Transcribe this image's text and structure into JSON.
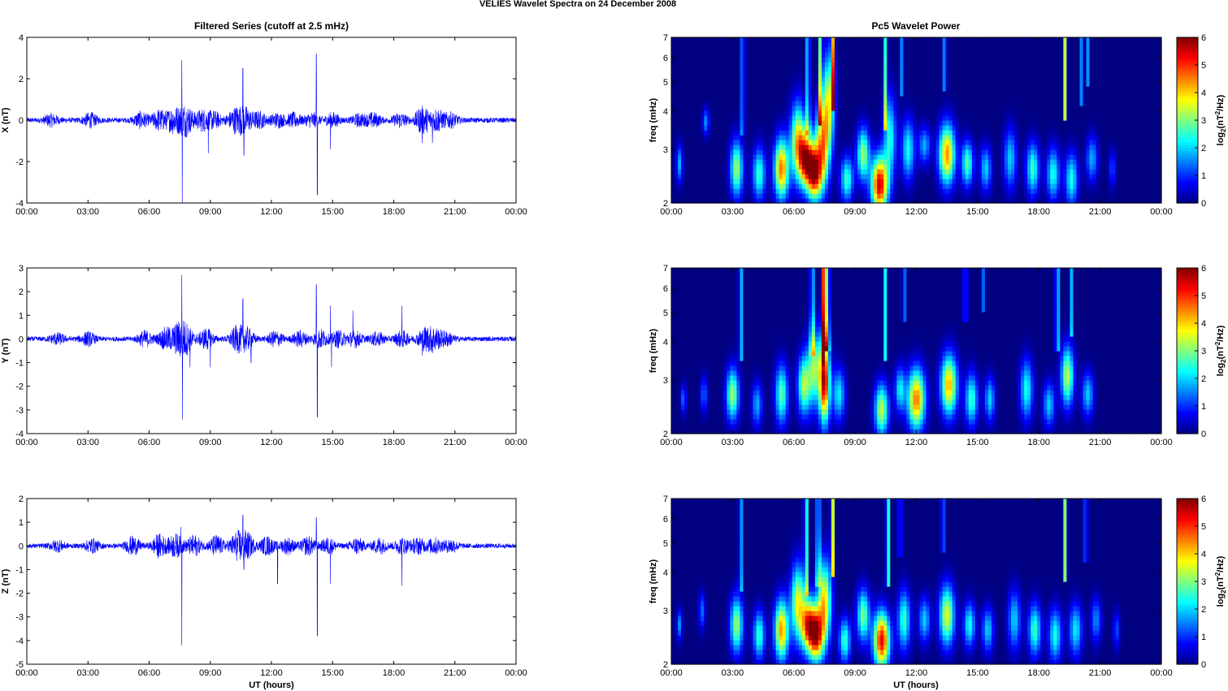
{
  "figure": {
    "suptitle": "VELIES Wavelet Spectra on 24 December  2008",
    "left_title": "Filtered Series (cutoff at 2.5 mHz)",
    "right_title": "Pc5 Wavelet Power",
    "xlabel": "UT (hours)",
    "time_ticks": [
      "00:00",
      "03:00",
      "06:00",
      "09:00",
      "12:00",
      "15:00",
      "18:00",
      "21:00",
      "00:00"
    ],
    "colors": {
      "trace": "#0000ff",
      "axes": "#000000"
    }
  },
  "chart_data": [
    {
      "type": "line",
      "id": "x",
      "title": "Filtered Series (cutoff at 2.5 mHz)",
      "ylabel": "X (nT)",
      "xlim": [
        0,
        24
      ],
      "ylim": [
        -4,
        4
      ],
      "yticks": [
        -4,
        -2,
        0,
        2,
        4
      ],
      "series": [
        {
          "color": "#0000ff",
          "noise_amplitude": 0.12
        }
      ],
      "bursts": [
        [
          1.2,
          0.25
        ],
        [
          3.1,
          0.3
        ],
        [
          5.6,
          0.35
        ],
        [
          6.5,
          0.45
        ],
        [
          7.2,
          0.55
        ],
        [
          7.8,
          0.7
        ],
        [
          8.6,
          0.45
        ],
        [
          9.2,
          0.35
        ],
        [
          10.2,
          0.5
        ],
        [
          10.7,
          0.55
        ],
        [
          11.4,
          0.35
        ],
        [
          12.3,
          0.3
        ],
        [
          13.1,
          0.3
        ],
        [
          14.0,
          0.3
        ],
        [
          15.0,
          0.3
        ],
        [
          16.3,
          0.25
        ],
        [
          17.0,
          0.3
        ],
        [
          18.3,
          0.3
        ],
        [
          19.4,
          0.6
        ],
        [
          20.1,
          0.5
        ],
        [
          20.8,
          0.3
        ]
      ],
      "spikes": [
        [
          7.6,
          2.9
        ],
        [
          7.62,
          -4.0
        ],
        [
          8.9,
          -1.6
        ],
        [
          10.6,
          2.5
        ],
        [
          10.65,
          -1.7
        ],
        [
          14.2,
          3.2
        ],
        [
          14.25,
          -3.6
        ],
        [
          14.9,
          -1.4
        ],
        [
          19.4,
          -1.1
        ],
        [
          19.9,
          -1.1
        ]
      ]
    },
    {
      "type": "line",
      "id": "y",
      "ylabel": "Y (nT)",
      "xlim": [
        0,
        24
      ],
      "ylim": [
        -4,
        3
      ],
      "yticks": [
        -4,
        -3,
        -2,
        -1,
        0,
        1,
        2,
        3
      ],
      "series": [
        {
          "color": "#0000ff",
          "noise_amplitude": 0.1
        }
      ],
      "bursts": [
        [
          1.5,
          0.2
        ],
        [
          3.0,
          0.25
        ],
        [
          5.8,
          0.3
        ],
        [
          6.8,
          0.4
        ],
        [
          7.4,
          0.5
        ],
        [
          7.8,
          0.55
        ],
        [
          8.8,
          0.4
        ],
        [
          10.3,
          0.45
        ],
        [
          10.8,
          0.4
        ],
        [
          12.2,
          0.3
        ],
        [
          13.4,
          0.3
        ],
        [
          14.4,
          0.35
        ],
        [
          15.3,
          0.3
        ],
        [
          16.1,
          0.3
        ],
        [
          17.2,
          0.25
        ],
        [
          18.4,
          0.3
        ],
        [
          19.5,
          0.4
        ],
        [
          20.0,
          0.4
        ],
        [
          20.6,
          0.25
        ]
      ],
      "spikes": [
        [
          7.6,
          2.7
        ],
        [
          7.63,
          -3.4
        ],
        [
          8.0,
          -1.2
        ],
        [
          9.0,
          -1.2
        ],
        [
          10.6,
          1.7
        ],
        [
          11.0,
          -1.0
        ],
        [
          14.2,
          2.3
        ],
        [
          14.25,
          -3.3
        ],
        [
          14.9,
          1.4
        ],
        [
          14.95,
          -1.2
        ],
        [
          16.0,
          1.2
        ],
        [
          18.4,
          1.4
        ],
        [
          19.4,
          -0.7
        ],
        [
          19.9,
          -0.6
        ]
      ]
    },
    {
      "type": "line",
      "id": "z",
      "ylabel": "Z (nT)",
      "xlabel": "UT (hours)",
      "xlim": [
        0,
        24
      ],
      "ylim": [
        -5,
        2
      ],
      "yticks": [
        -5,
        -4,
        -3,
        -2,
        -1,
        0,
        1,
        2
      ],
      "series": [
        {
          "color": "#0000ff",
          "noise_amplitude": 0.1
        }
      ],
      "bursts": [
        [
          1.5,
          0.2
        ],
        [
          3.2,
          0.25
        ],
        [
          5.2,
          0.35
        ],
        [
          6.5,
          0.45
        ],
        [
          7.3,
          0.45
        ],
        [
          8.2,
          0.4
        ],
        [
          9.3,
          0.4
        ],
        [
          10.3,
          0.5
        ],
        [
          10.8,
          0.5
        ],
        [
          11.8,
          0.35
        ],
        [
          12.8,
          0.3
        ],
        [
          13.8,
          0.35
        ],
        [
          14.8,
          0.3
        ],
        [
          16.2,
          0.3
        ],
        [
          17.3,
          0.3
        ],
        [
          18.4,
          0.3
        ],
        [
          19.2,
          0.3
        ],
        [
          20.0,
          0.3
        ],
        [
          20.8,
          0.25
        ]
      ],
      "spikes": [
        [
          7.6,
          -4.2
        ],
        [
          7.55,
          0.8
        ],
        [
          10.6,
          1.3
        ],
        [
          10.65,
          -1.0
        ],
        [
          12.3,
          -1.6
        ],
        [
          14.2,
          1.2
        ],
        [
          14.25,
          -3.8
        ],
        [
          14.9,
          -1.6
        ],
        [
          18.4,
          -1.7
        ]
      ]
    },
    {
      "type": "heatmap",
      "id": "wx",
      "title": "Pc5 Wavelet Power",
      "ylabel": "freq (mHz)",
      "yscale": "log",
      "xlim": [
        0,
        24
      ],
      "ylim": [
        2,
        7
      ],
      "yticks": [
        2,
        3,
        4,
        5,
        6,
        7
      ],
      "colorbar": {
        "label": "log2(nT^2/Hz)",
        "range": [
          0,
          6
        ],
        "ticks": [
          0,
          1,
          2,
          3,
          4,
          5,
          6
        ],
        "colormap": "jet"
      },
      "blobs": [
        [
          0.4,
          2.7,
          0.12,
          0.1,
          1.8
        ],
        [
          1.7,
          3.7,
          0.12,
          0.07,
          1.6
        ],
        [
          3.2,
          2.6,
          0.22,
          0.15,
          3.2
        ],
        [
          4.3,
          2.5,
          0.22,
          0.14,
          2.6
        ],
        [
          5.4,
          2.6,
          0.25,
          0.16,
          4.6
        ],
        [
          6.2,
          3.2,
          0.25,
          0.2,
          3.8
        ],
        [
          6.6,
          2.8,
          0.25,
          0.14,
          4.8
        ],
        [
          7.0,
          2.5,
          0.25,
          0.14,
          5.0
        ],
        [
          7.4,
          3.1,
          0.25,
          0.22,
          4.0
        ],
        [
          7.7,
          4.4,
          0.22,
          0.25,
          3.2
        ],
        [
          8.6,
          2.4,
          0.22,
          0.12,
          2.6
        ],
        [
          9.4,
          2.9,
          0.22,
          0.14,
          3.2
        ],
        [
          10.2,
          2.3,
          0.28,
          0.15,
          5.6
        ],
        [
          10.7,
          3.3,
          0.22,
          0.22,
          2.4
        ],
        [
          11.6,
          3.0,
          0.22,
          0.16,
          2.4
        ],
        [
          12.4,
          3.1,
          0.2,
          0.1,
          1.8
        ],
        [
          13.5,
          2.9,
          0.28,
          0.16,
          4.4
        ],
        [
          14.5,
          2.7,
          0.2,
          0.12,
          2.8
        ],
        [
          15.4,
          2.6,
          0.2,
          0.12,
          2.0
        ],
        [
          16.6,
          2.8,
          0.22,
          0.16,
          2.0
        ],
        [
          17.7,
          2.6,
          0.22,
          0.14,
          2.6
        ],
        [
          18.7,
          2.5,
          0.22,
          0.14,
          2.4
        ],
        [
          19.6,
          2.4,
          0.22,
          0.14,
          2.4
        ],
        [
          20.6,
          2.8,
          0.2,
          0.12,
          1.8
        ],
        [
          21.6,
          2.6,
          0.12,
          0.1,
          1.2
        ]
      ],
      "streaks": [
        [
          3.5,
          3.4,
          2.0
        ],
        [
          6.7,
          3.4,
          2.8
        ],
        [
          7.3,
          3.6,
          2.8
        ],
        [
          7.9,
          4.0,
          4.0
        ],
        [
          10.5,
          3.5,
          2.6
        ],
        [
          11.3,
          4.5,
          1.6
        ],
        [
          13.4,
          4.6,
          1.8
        ],
        [
          19.3,
          3.8,
          3.6
        ],
        [
          20.1,
          4.2,
          1.6
        ],
        [
          20.4,
          4.8,
          1.6
        ]
      ]
    },
    {
      "type": "heatmap",
      "id": "wy",
      "ylabel": "freq (mHz)",
      "yscale": "log",
      "xlim": [
        0,
        24
      ],
      "ylim": [
        2,
        7
      ],
      "yticks": [
        2,
        3,
        4,
        5,
        6,
        7
      ],
      "colorbar": {
        "label": "log2(nT^2/Hz)",
        "range": [
          0,
          6
        ],
        "ticks": [
          0,
          1,
          2,
          3,
          4,
          5,
          6
        ],
        "colormap": "jet"
      },
      "blobs": [
        [
          0.6,
          2.6,
          0.1,
          0.08,
          1.4
        ],
        [
          1.6,
          2.7,
          0.12,
          0.1,
          1.4
        ],
        [
          3.0,
          2.7,
          0.22,
          0.14,
          3.2
        ],
        [
          4.2,
          2.5,
          0.18,
          0.12,
          1.8
        ],
        [
          5.4,
          2.7,
          0.22,
          0.16,
          2.8
        ],
        [
          6.5,
          2.9,
          0.22,
          0.16,
          3.2
        ],
        [
          7.0,
          3.3,
          0.22,
          0.2,
          3.0
        ],
        [
          7.5,
          3.0,
          0.18,
          0.22,
          5.8
        ],
        [
          8.2,
          2.7,
          0.22,
          0.14,
          2.2
        ],
        [
          10.3,
          2.4,
          0.24,
          0.14,
          3.4
        ],
        [
          11.2,
          2.8,
          0.18,
          0.12,
          2.2
        ],
        [
          12.0,
          2.6,
          0.3,
          0.16,
          4.6
        ],
        [
          13.6,
          2.9,
          0.28,
          0.16,
          4.2
        ],
        [
          14.7,
          2.6,
          0.22,
          0.14,
          2.6
        ],
        [
          15.6,
          2.6,
          0.18,
          0.12,
          2.0
        ],
        [
          17.4,
          2.8,
          0.22,
          0.16,
          2.4
        ],
        [
          18.5,
          2.5,
          0.2,
          0.12,
          2.0
        ],
        [
          19.4,
          3.1,
          0.22,
          0.16,
          3.4
        ],
        [
          20.4,
          2.7,
          0.2,
          0.12,
          2.0
        ]
      ],
      "streaks": [
        [
          3.4,
          3.5,
          2.2
        ],
        [
          6.9,
          3.6,
          2.6
        ],
        [
          7.45,
          3.4,
          5.0
        ],
        [
          7.65,
          3.8,
          4.2
        ],
        [
          10.5,
          3.5,
          2.4
        ],
        [
          11.4,
          4.6,
          1.6
        ],
        [
          14.4,
          4.6,
          1.8
        ],
        [
          18.9,
          3.8,
          2.8
        ],
        [
          19.6,
          4.2,
          1.8
        ],
        [
          15.3,
          5.0,
          1.4
        ]
      ]
    },
    {
      "type": "heatmap",
      "id": "wz",
      "ylabel": "freq (mHz)",
      "xlabel": "UT (hours)",
      "yscale": "log",
      "xlim": [
        0,
        24
      ],
      "ylim": [
        2,
        7
      ],
      "yticks": [
        2,
        3,
        4,
        5,
        6,
        7
      ],
      "colorbar": {
        "label": "log2(nT^2/Hz)",
        "range": [
          0,
          6
        ],
        "ticks": [
          0,
          1,
          2,
          3,
          4,
          5,
          6
        ],
        "colormap": "jet"
      },
      "blobs": [
        [
          0.4,
          2.7,
          0.1,
          0.08,
          1.6
        ],
        [
          1.5,
          3.0,
          0.12,
          0.1,
          1.4
        ],
        [
          3.2,
          2.7,
          0.22,
          0.15,
          3.2
        ],
        [
          4.3,
          2.5,
          0.2,
          0.13,
          2.6
        ],
        [
          5.4,
          2.6,
          0.24,
          0.16,
          4.4
        ],
        [
          6.2,
          3.2,
          0.24,
          0.2,
          3.6
        ],
        [
          6.7,
          2.7,
          0.24,
          0.14,
          4.6
        ],
        [
          7.1,
          2.5,
          0.24,
          0.14,
          5.0
        ],
        [
          7.5,
          3.2,
          0.24,
          0.22,
          4.0
        ],
        [
          8.5,
          2.4,
          0.2,
          0.12,
          2.6
        ],
        [
          9.4,
          2.9,
          0.22,
          0.14,
          3.0
        ],
        [
          10.3,
          2.4,
          0.28,
          0.15,
          5.4
        ],
        [
          11.4,
          2.8,
          0.22,
          0.16,
          2.6
        ],
        [
          12.4,
          2.8,
          0.2,
          0.12,
          2.0
        ],
        [
          13.5,
          2.9,
          0.26,
          0.16,
          3.6
        ],
        [
          14.6,
          2.7,
          0.2,
          0.12,
          2.4
        ],
        [
          15.5,
          2.6,
          0.2,
          0.12,
          2.0
        ],
        [
          16.8,
          2.8,
          0.22,
          0.16,
          2.0
        ],
        [
          17.8,
          2.6,
          0.22,
          0.14,
          2.6
        ],
        [
          18.8,
          2.5,
          0.22,
          0.14,
          2.4
        ],
        [
          19.8,
          2.6,
          0.22,
          0.14,
          2.2
        ],
        [
          20.8,
          2.8,
          0.18,
          0.12,
          1.6
        ],
        [
          21.8,
          2.6,
          0.12,
          0.1,
          1.2
        ]
      ],
      "streaks": [
        [
          3.4,
          3.5,
          2.0
        ],
        [
          6.6,
          3.4,
          2.8
        ],
        [
          7.2,
          3.6,
          3.0
        ],
        [
          7.9,
          3.9,
          3.6
        ],
        [
          10.6,
          3.6,
          3.0
        ],
        [
          11.2,
          4.5,
          1.6
        ],
        [
          13.3,
          4.6,
          1.8
        ],
        [
          19.3,
          3.8,
          3.2
        ],
        [
          20.3,
          4.4,
          1.6
        ]
      ]
    }
  ]
}
